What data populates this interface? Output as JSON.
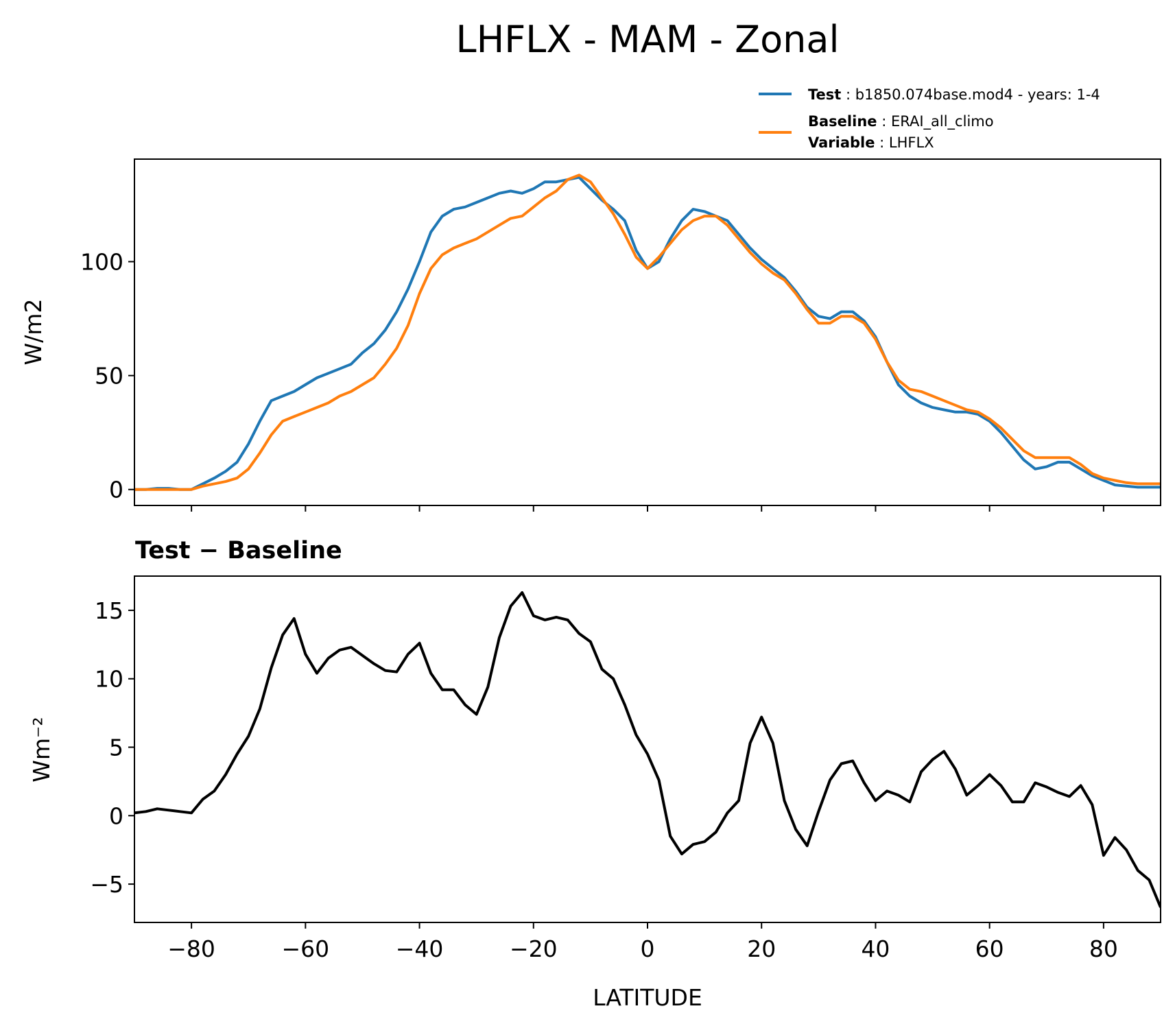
{
  "title": "LHFLX - MAM - Zonal",
  "legend": {
    "test_key": "Test",
    "test_value": ": b1850.074base.mod4 - years: 1-4",
    "baseline_key": "Baseline",
    "baseline_value": ": ERAI_all_climo",
    "variable_key": "Variable",
    "variable_value": ": LHFLX"
  },
  "colors": {
    "test": "#1f77b4",
    "baseline": "#ff7f0e",
    "difference": "#000000"
  },
  "chart_data": [
    {
      "type": "line",
      "ylabel": "W/m2",
      "xlim": [
        -90,
        90
      ],
      "ylim": [
        -7,
        145
      ],
      "yticks": [
        0,
        50,
        100
      ],
      "ytick_labels": [
        "0",
        "50",
        "100"
      ],
      "xticks": [
        -80,
        -60,
        -40,
        -20,
        0,
        20,
        40,
        60,
        80
      ],
      "legend_placement": "above-right",
      "grid": false,
      "series": [
        {
          "name": "Test",
          "points": [
            [
              -90,
              0
            ],
            [
              -88,
              0
            ],
            [
              -86,
              0.5
            ],
            [
              -84,
              0.5
            ],
            [
              -82,
              0
            ],
            [
              -80,
              0
            ],
            [
              -78,
              2.5
            ],
            [
              -76,
              5
            ],
            [
              -74,
              8
            ],
            [
              -72,
              12
            ],
            [
              -70,
              20
            ],
            [
              -68,
              30
            ],
            [
              -66,
              39
            ],
            [
              -64,
              41
            ],
            [
              -62,
              43
            ],
            [
              -60,
              46
            ],
            [
              -58,
              49
            ],
            [
              -56,
              51
            ],
            [
              -54,
              53
            ],
            [
              -52,
              55
            ],
            [
              -50,
              60
            ],
            [
              -48,
              64
            ],
            [
              -46,
              70
            ],
            [
              -44,
              78
            ],
            [
              -42,
              88
            ],
            [
              -40,
              100
            ],
            [
              -38,
              113
            ],
            [
              -36,
              120
            ],
            [
              -34,
              123
            ],
            [
              -32,
              124
            ],
            [
              -30,
              126
            ],
            [
              -28,
              128
            ],
            [
              -26,
              130
            ],
            [
              -24,
              131
            ],
            [
              -22,
              130
            ],
            [
              -20,
              132
            ],
            [
              -18,
              135
            ],
            [
              -16,
              135
            ],
            [
              -14,
              136
            ],
            [
              -12,
              137
            ],
            [
              -10,
              132
            ],
            [
              -8,
              127
            ],
            [
              -6,
              123
            ],
            [
              -4,
              118
            ],
            [
              -2,
              105
            ],
            [
              0,
              97
            ],
            [
              2,
              100
            ],
            [
              4,
              110
            ],
            [
              6,
              118
            ],
            [
              8,
              123
            ],
            [
              10,
              122
            ],
            [
              12,
              120
            ],
            [
              14,
              118
            ],
            [
              16,
              112
            ],
            [
              18,
              106
            ],
            [
              20,
              101
            ],
            [
              22,
              97
            ],
            [
              24,
              93
            ],
            [
              26,
              87
            ],
            [
              28,
              80
            ],
            [
              30,
              76
            ],
            [
              32,
              75
            ],
            [
              34,
              78
            ],
            [
              36,
              78
            ],
            [
              38,
              74
            ],
            [
              40,
              67
            ],
            [
              42,
              56
            ],
            [
              44,
              46
            ],
            [
              46,
              41
            ],
            [
              48,
              38
            ],
            [
              50,
              36
            ],
            [
              52,
              35
            ],
            [
              54,
              34
            ],
            [
              56,
              34
            ],
            [
              58,
              33
            ],
            [
              60,
              30
            ],
            [
              62,
              25
            ],
            [
              64,
              19
            ],
            [
              66,
              13
            ],
            [
              68,
              9
            ],
            [
              70,
              10
            ],
            [
              72,
              12
            ],
            [
              74,
              12
            ],
            [
              76,
              9
            ],
            [
              78,
              6
            ],
            [
              80,
              4
            ],
            [
              82,
              2
            ],
            [
              84,
              1.5
            ],
            [
              86,
              1
            ],
            [
              88,
              1
            ],
            [
              90,
              1
            ]
          ]
        },
        {
          "name": "Baseline",
          "points": [
            [
              -90,
              0
            ],
            [
              -88,
              0
            ],
            [
              -86,
              0
            ],
            [
              -84,
              0
            ],
            [
              -82,
              0
            ],
            [
              -80,
              0
            ],
            [
              -78,
              1.5
            ],
            [
              -76,
              2.5
            ],
            [
              -74,
              3.5
            ],
            [
              -72,
              5
            ],
            [
              -70,
              9
            ],
            [
              -68,
              16
            ],
            [
              -66,
              24
            ],
            [
              -64,
              30
            ],
            [
              -62,
              32
            ],
            [
              -60,
              34
            ],
            [
              -58,
              36
            ],
            [
              -56,
              38
            ],
            [
              -54,
              41
            ],
            [
              -52,
              43
            ],
            [
              -50,
              46
            ],
            [
              -48,
              49
            ],
            [
              -46,
              55
            ],
            [
              -44,
              62
            ],
            [
              -42,
              72
            ],
            [
              -40,
              86
            ],
            [
              -38,
              97
            ],
            [
              -36,
              103
            ],
            [
              -34,
              106
            ],
            [
              -32,
              108
            ],
            [
              -30,
              110
            ],
            [
              -28,
              113
            ],
            [
              -26,
              116
            ],
            [
              -24,
              119
            ],
            [
              -22,
              120
            ],
            [
              -20,
              124
            ],
            [
              -18,
              128
            ],
            [
              -16,
              131
            ],
            [
              -14,
              136
            ],
            [
              -12,
              138
            ],
            [
              -10,
              135
            ],
            [
              -8,
              128
            ],
            [
              -6,
              121
            ],
            [
              -4,
              112
            ],
            [
              -2,
              102
            ],
            [
              0,
              97
            ],
            [
              2,
              102
            ],
            [
              4,
              108
            ],
            [
              6,
              114
            ],
            [
              8,
              118
            ],
            [
              10,
              120
            ],
            [
              12,
              120
            ],
            [
              14,
              116
            ],
            [
              16,
              110
            ],
            [
              18,
              104
            ],
            [
              20,
              99
            ],
            [
              22,
              95
            ],
            [
              24,
              92
            ],
            [
              26,
              86
            ],
            [
              28,
              79
            ],
            [
              30,
              73
            ],
            [
              32,
              73
            ],
            [
              34,
              76
            ],
            [
              36,
              76
            ],
            [
              38,
              73
            ],
            [
              40,
              66
            ],
            [
              42,
              56
            ],
            [
              44,
              48
            ],
            [
              46,
              44
            ],
            [
              48,
              43
            ],
            [
              50,
              41
            ],
            [
              52,
              39
            ],
            [
              54,
              37
            ],
            [
              56,
              35
            ],
            [
              58,
              34
            ],
            [
              60,
              31
            ],
            [
              62,
              27
            ],
            [
              64,
              22
            ],
            [
              66,
              17
            ],
            [
              68,
              14
            ],
            [
              70,
              14
            ],
            [
              72,
              14
            ],
            [
              74,
              14
            ],
            [
              76,
              11
            ],
            [
              78,
              7
            ],
            [
              80,
              5
            ],
            [
              82,
              4
            ],
            [
              84,
              3
            ],
            [
              86,
              2.5
            ],
            [
              88,
              2.5
            ],
            [
              90,
              2.5
            ]
          ]
        }
      ]
    },
    {
      "type": "line",
      "title": "Test − Baseline",
      "ylabel": "Wm⁻²",
      "xlabel": "LATITUDE",
      "xlim": [
        -90,
        90
      ],
      "ylim": [
        -7.8,
        17.5
      ],
      "yticks": [
        -5,
        0,
        5,
        10,
        15
      ],
      "ytick_labels": [
        "−5",
        "0",
        "5",
        "10",
        "15"
      ],
      "xticks": [
        -80,
        -60,
        -40,
        -20,
        0,
        20,
        40,
        60,
        80
      ],
      "xtick_labels": [
        "−80",
        "−60",
        "−40",
        "−20",
        "0",
        "20",
        "40",
        "60",
        "80"
      ],
      "grid": false,
      "series": [
        {
          "points": [
            [
              -90,
              0.2
            ],
            [
              -88,
              0.3
            ],
            [
              -86,
              0.5
            ],
            [
              -84,
              0.4
            ],
            [
              -82,
              0.3
            ],
            [
              -80,
              0.2
            ],
            [
              -78,
              1.2
            ],
            [
              -76,
              1.8
            ],
            [
              -74,
              3
            ],
            [
              -72,
              4.5
            ],
            [
              -70,
              5.8
            ],
            [
              -68,
              7.8
            ],
            [
              -66,
              10.8
            ],
            [
              -64,
              13.2
            ],
            [
              -62,
              14.4
            ],
            [
              -60,
              11.8
            ],
            [
              -58,
              10.4
            ],
            [
              -56,
              11.5
            ],
            [
              -54,
              12.1
            ],
            [
              -52,
              12.3
            ],
            [
              -50,
              11.7
            ],
            [
              -48,
              11.1
            ],
            [
              -46,
              10.6
            ],
            [
              -44,
              10.5
            ],
            [
              -42,
              11.8
            ],
            [
              -40,
              12.6
            ],
            [
              -38,
              10.4
            ],
            [
              -36,
              9.2
            ],
            [
              -34,
              9.2
            ],
            [
              -32,
              8.1
            ],
            [
              -30,
              7.4
            ],
            [
              -28,
              9.4
            ],
            [
              -26,
              13
            ],
            [
              -24,
              15.3
            ],
            [
              -22,
              16.3
            ],
            [
              -20,
              14.6
            ],
            [
              -18,
              14.3
            ],
            [
              -16,
              14.5
            ],
            [
              -14,
              14.3
            ],
            [
              -12,
              13.3
            ],
            [
              -10,
              12.7
            ],
            [
              -8,
              10.7
            ],
            [
              -6,
              10
            ],
            [
              -4,
              8.1
            ],
            [
              -2,
              5.9
            ],
            [
              0,
              4.5
            ],
            [
              2,
              2.6
            ],
            [
              4,
              -1.5
            ],
            [
              6,
              -2.8
            ],
            [
              8,
              -2.1
            ],
            [
              10,
              -1.9
            ],
            [
              12,
              -1.2
            ],
            [
              14,
              0.2
            ],
            [
              16,
              1.1
            ],
            [
              18,
              5.3
            ],
            [
              20,
              7.2
            ],
            [
              22,
              5.3
            ],
            [
              24,
              1.1
            ],
            [
              26,
              -1.0
            ],
            [
              28,
              -2.2
            ],
            [
              30,
              0.3
            ],
            [
              32,
              2.6
            ],
            [
              34,
              3.8
            ],
            [
              36,
              4.0
            ],
            [
              38,
              2.4
            ],
            [
              40,
              1.1
            ],
            [
              42,
              1.8
            ],
            [
              44,
              1.5
            ],
            [
              46,
              1.0
            ],
            [
              48,
              3.2
            ],
            [
              50,
              4.1
            ],
            [
              52,
              4.7
            ],
            [
              54,
              3.4
            ],
            [
              56,
              1.5
            ],
            [
              58,
              2.2
            ],
            [
              60,
              3.0
            ],
            [
              62,
              2.2
            ],
            [
              64,
              1.0
            ],
            [
              66,
              1.0
            ],
            [
              68,
              2.4
            ],
            [
              70,
              2.1
            ],
            [
              72,
              1.7
            ],
            [
              74,
              1.4
            ],
            [
              76,
              2.2
            ],
            [
              78,
              0.8
            ],
            [
              80,
              -2.9
            ],
            [
              82,
              -1.6
            ],
            [
              84,
              -2.5
            ],
            [
              86,
              -4.0
            ],
            [
              88,
              -4.7
            ],
            [
              90,
              -6.7
            ]
          ]
        }
      ]
    }
  ]
}
